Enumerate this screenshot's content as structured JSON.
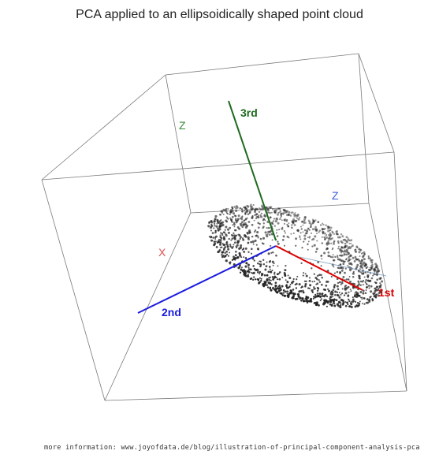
{
  "title": "PCA applied to an ellipsoidically shaped point cloud",
  "axis_labels": {
    "z_back": "Z",
    "z_top": "Z",
    "x": "X"
  },
  "components": {
    "first": {
      "label": "1st",
      "color": "#dd0000"
    },
    "second": {
      "label": "2nd",
      "color": "#1a1ae0"
    },
    "third": {
      "label": "3rd",
      "color": "#1f6a1f"
    }
  },
  "colors": {
    "axis_x_label": "#e05050",
    "axis_z_back_label": "#3a8a3a",
    "axis_z_top_label": "#3a5ad0",
    "box": "#7a7a7a",
    "points": "#222222"
  },
  "footer": "more information: www.joyofdata.de/blog/illustration-of-principal-component-analysis-pca"
}
